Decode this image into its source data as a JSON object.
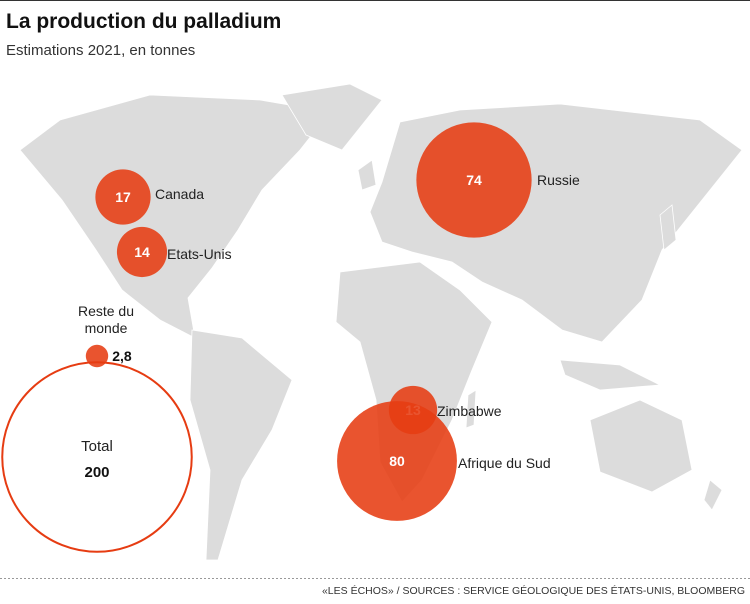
{
  "header": {
    "title": "La production du palladium",
    "subtitle": "Estimations 2021, en tonnes"
  },
  "chart_data": {
    "type": "bubble-map",
    "categories": [
      "Canada",
      "Etats-Unis",
      "Russie",
      "Zimbabwe",
      "Afrique du Sud",
      "Reste du monde"
    ],
    "values": [
      17,
      14,
      74,
      13,
      80,
      2.8
    ],
    "value_labels": [
      "17",
      "14",
      "74",
      "13",
      "80",
      "2,8"
    ],
    "color": "#e63c12",
    "total": {
      "label": "Total",
      "value": 200
    }
  },
  "source": "«LES ÉCHOS» / SOURCES : SERVICE GÉOLOGIQUE DES ÉTATS-UNIS, BLOOMBERG"
}
